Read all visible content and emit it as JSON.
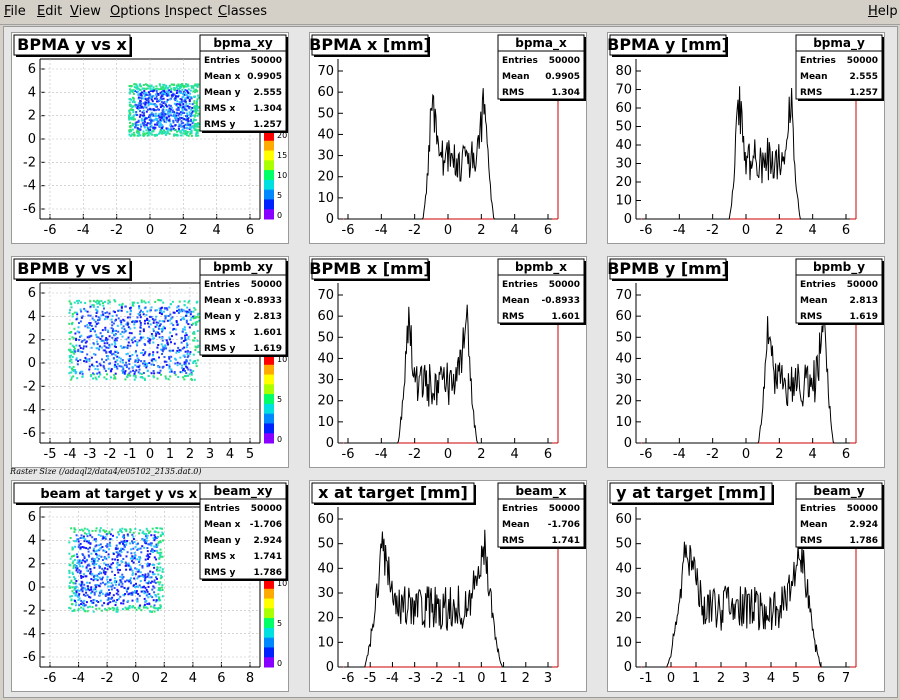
{
  "menu": {
    "items": [
      "File",
      "Edit",
      "View",
      "Options",
      "Inspect",
      "Classes"
    ],
    "help": "Help"
  },
  "raster_note": "Raster Size (/adaql2/data4/e05102_2135.dat.0)",
  "colors": {
    "hist_line": "#000000",
    "axis_red": "#cc0000",
    "pad_bg": "#ffffff",
    "canvas_bg": "#e6e6e6"
  },
  "pads": [
    {
      "id": "bpma_xy",
      "title": "BPMA y vs x",
      "kind": "scatter",
      "stats": {
        "name": "bpma_xy",
        "rows": [
          [
            "Entries",
            "50000"
          ],
          [
            "Mean x",
            "0.9905"
          ],
          [
            "Mean y",
            "2.555"
          ],
          [
            "RMS x",
            "1.304"
          ],
          [
            "RMS y",
            "1.257"
          ]
        ]
      },
      "x_ticks": [
        "-6",
        "-4",
        "-2",
        "0",
        "2",
        "4",
        "6"
      ],
      "y_ticks": [
        "6",
        "4",
        "2",
        "0",
        "-2",
        "-4",
        "-6"
      ],
      "z_ticks": [
        "20",
        "15",
        "10",
        "5",
        "0"
      ]
    },
    {
      "id": "bpma_x",
      "title": "BPMA x [mm]",
      "kind": "hist",
      "stats": {
        "name": "bpma_x",
        "rows": [
          [
            "Entries",
            "50000"
          ],
          [
            "Mean",
            "0.9905"
          ],
          [
            "RMS",
            "1.304"
          ]
        ]
      },
      "x_ticks": [
        "-6",
        "-4",
        "-2",
        "0",
        "2",
        "4",
        "6"
      ],
      "y_ticks": [
        "70",
        "60",
        "50",
        "40",
        "30",
        "20",
        "10",
        "0"
      ]
    },
    {
      "id": "bpma_y",
      "title": "BPMA y [mm]",
      "kind": "hist",
      "stats": {
        "name": "bpma_y",
        "rows": [
          [
            "Entries",
            "50000"
          ],
          [
            "Mean",
            "2.555"
          ],
          [
            "RMS",
            "1.257"
          ]
        ]
      },
      "x_ticks": [
        "-6",
        "-4",
        "-2",
        "0",
        "2",
        "4",
        "6"
      ],
      "y_ticks": [
        "80",
        "70",
        "60",
        "50",
        "40",
        "30",
        "20",
        "10",
        "0"
      ]
    },
    {
      "id": "bpmb_xy",
      "title": "BPMB y vs x",
      "kind": "scatter",
      "stats": {
        "name": "bpmb_xy",
        "rows": [
          [
            "Entries",
            "50000"
          ],
          [
            "Mean x",
            "-0.8933"
          ],
          [
            "Mean y",
            "2.813"
          ],
          [
            "RMS x",
            "1.601"
          ],
          [
            "RMS y",
            "1.619"
          ]
        ]
      },
      "x_ticks": [
        "-5",
        "-4",
        "-3",
        "-2",
        "-1",
        "0",
        "1",
        "2",
        "3",
        "4",
        "5"
      ],
      "y_ticks": [
        "6",
        "4",
        "2",
        "0",
        "-2",
        "-4",
        "-6"
      ],
      "z_ticks": [
        "10",
        "5",
        "0"
      ]
    },
    {
      "id": "bpmb_x",
      "title": "BPMB x [mm]",
      "kind": "hist",
      "stats": {
        "name": "bpmb_x",
        "rows": [
          [
            "Entries",
            "50000"
          ],
          [
            "Mean",
            "-0.8933"
          ],
          [
            "RMS",
            "1.601"
          ]
        ]
      },
      "x_ticks": [
        "-6",
        "-4",
        "-2",
        "0",
        "2",
        "4",
        "6"
      ],
      "y_ticks": [
        "70",
        "60",
        "50",
        "40",
        "30",
        "20",
        "10",
        "0"
      ]
    },
    {
      "id": "bpmb_y",
      "title": "BPMB y [mm]",
      "kind": "hist",
      "stats": {
        "name": "bpmb_y",
        "rows": [
          [
            "Entries",
            "50000"
          ],
          [
            "Mean",
            "2.813"
          ],
          [
            "RMS",
            "1.619"
          ]
        ]
      },
      "x_ticks": [
        "-6",
        "-4",
        "-2",
        "0",
        "2",
        "4",
        "6"
      ],
      "y_ticks": [
        "70",
        "60",
        "50",
        "40",
        "30",
        "20",
        "10",
        "0"
      ]
    },
    {
      "id": "beam_xy",
      "title": "beam at target y vs x",
      "kind": "scatter",
      "stats": {
        "name": "beam_xy",
        "rows": [
          [
            "Entries",
            "50000"
          ],
          [
            "Mean x",
            "-1.706"
          ],
          [
            "Mean y",
            "2.924"
          ],
          [
            "RMS x",
            "1.741"
          ],
          [
            "RMS y",
            "1.786"
          ]
        ]
      },
      "x_ticks": [
        "-6",
        "-4",
        "-2",
        "0",
        "2",
        "4",
        "6",
        "8"
      ],
      "y_ticks": [
        "6",
        "4",
        "2",
        "0",
        "-2",
        "-4",
        "-6"
      ],
      "z_ticks": [
        "10",
        "5",
        "0"
      ]
    },
    {
      "id": "beam_x",
      "title": "x at target [mm]",
      "kind": "hist",
      "stats": {
        "name": "beam_x",
        "rows": [
          [
            "Entries",
            "50000"
          ],
          [
            "Mean",
            "-1.706"
          ],
          [
            "RMS",
            "1.741"
          ]
        ]
      },
      "x_ticks": [
        "-6",
        "-5",
        "-4",
        "-3",
        "-2",
        "-1",
        "0",
        "1",
        "2",
        "3"
      ],
      "y_ticks": [
        "60",
        "50",
        "40",
        "30",
        "20",
        "10",
        "0"
      ]
    },
    {
      "id": "beam_y",
      "title": "y at target [mm]",
      "kind": "hist",
      "stats": {
        "name": "beam_y",
        "rows": [
          [
            "Entries",
            "50000"
          ],
          [
            "Mean",
            "2.924"
          ],
          [
            "RMS",
            "1.786"
          ]
        ]
      },
      "x_ticks": [
        "-1",
        "0",
        "1",
        "2",
        "3",
        "4",
        "5",
        "6",
        "7"
      ],
      "y_ticks": [
        "60",
        "50",
        "40",
        "30",
        "20",
        "10",
        "0"
      ]
    }
  ]
}
